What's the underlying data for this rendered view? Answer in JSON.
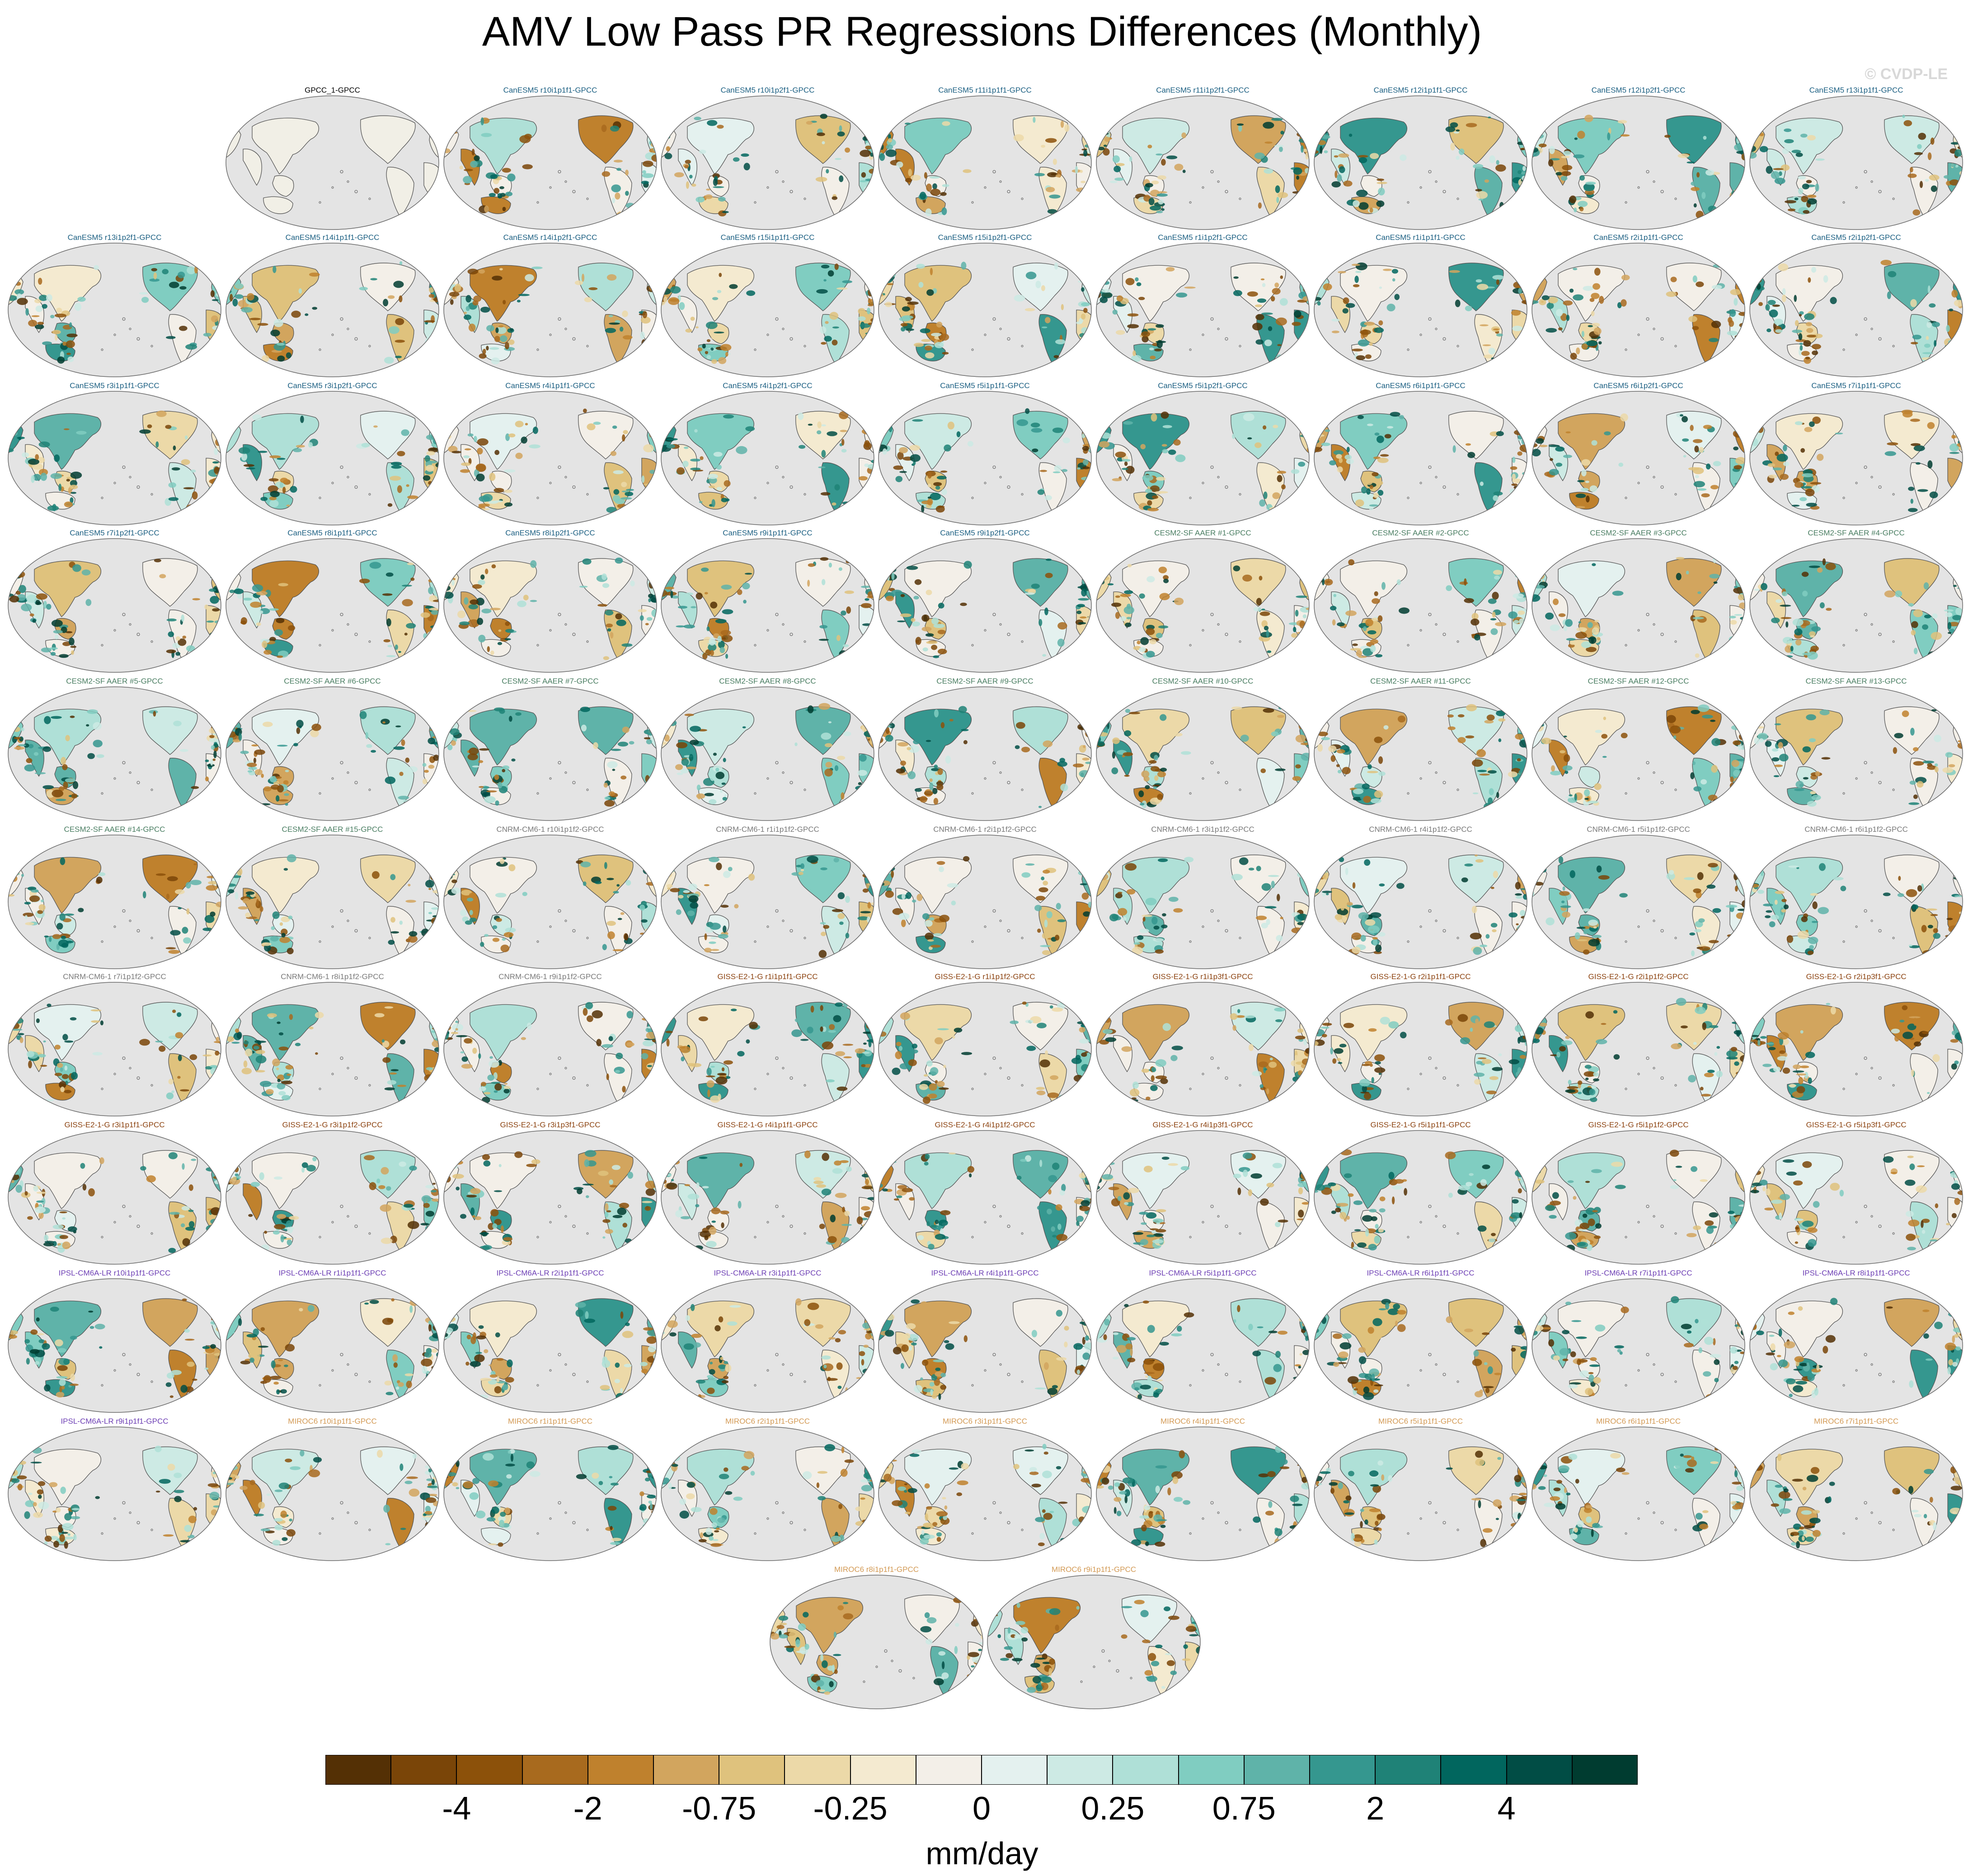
{
  "title": "AMV Low Pass PR Regressions Differences (Monthly)",
  "copyright": "© CVDP-LE",
  "colors": {
    "ocean": "#e4e4e4",
    "land_neutral": "#f1efe6",
    "coast": "#555555",
    "group_colors": {
      "obs": "#000000",
      "CanESM5": "#1b5f82",
      "CESM2-SF AAER": "#4a7e62",
      "CNRM-CM6-1": "#7a7a7a",
      "GISS-E2-1-G": "#8c4310",
      "IPSL-CM6A-LR": "#6e40b5",
      "MIROC6": "#d39a55"
    }
  },
  "panels": [
    {
      "label": "GPCC_1-GPCC",
      "group": "obs"
    },
    {
      "label": "CanESM5 r10i1p1f1-GPCC",
      "group": "CanESM5"
    },
    {
      "label": "CanESM5 r10i1p2f1-GPCC",
      "group": "CanESM5"
    },
    {
      "label": "CanESM5 r11i1p1f1-GPCC",
      "group": "CanESM5"
    },
    {
      "label": "CanESM5 r11i1p2f1-GPCC",
      "group": "CanESM5"
    },
    {
      "label": "CanESM5 r12i1p1f1-GPCC",
      "group": "CanESM5"
    },
    {
      "label": "CanESM5 r12i1p2f1-GPCC",
      "group": "CanESM5"
    },
    {
      "label": "CanESM5 r13i1p1f1-GPCC",
      "group": "CanESM5"
    },
    {
      "label": "CanESM5 r13i1p2f1-GPCC",
      "group": "CanESM5"
    },
    {
      "label": "CanESM5 r14i1p1f1-GPCC",
      "group": "CanESM5"
    },
    {
      "label": "CanESM5 r14i1p2f1-GPCC",
      "group": "CanESM5"
    },
    {
      "label": "CanESM5 r15i1p1f1-GPCC",
      "group": "CanESM5"
    },
    {
      "label": "CanESM5 r15i1p2f1-GPCC",
      "group": "CanESM5"
    },
    {
      "label": "CanESM5 r1i1p2f1-GPCC",
      "group": "CanESM5"
    },
    {
      "label": "CanESM5 r1i1p1f1-GPCC",
      "group": "CanESM5"
    },
    {
      "label": "CanESM5 r2i1p1f1-GPCC",
      "group": "CanESM5"
    },
    {
      "label": "CanESM5 r2i1p2f1-GPCC",
      "group": "CanESM5"
    },
    {
      "label": "CanESM5 r3i1p1f1-GPCC",
      "group": "CanESM5"
    },
    {
      "label": "CanESM5 r3i1p2f1-GPCC",
      "group": "CanESM5"
    },
    {
      "label": "CanESM5 r4i1p1f1-GPCC",
      "group": "CanESM5"
    },
    {
      "label": "CanESM5 r4i1p2f1-GPCC",
      "group": "CanESM5"
    },
    {
      "label": "CanESM5 r5i1p1f1-GPCC",
      "group": "CanESM5"
    },
    {
      "label": "CanESM5 r5i1p2f1-GPCC",
      "group": "CanESM5"
    },
    {
      "label": "CanESM5 r6i1p1f1-GPCC",
      "group": "CanESM5"
    },
    {
      "label": "CanESM5 r6i1p2f1-GPCC",
      "group": "CanESM5"
    },
    {
      "label": "CanESM5 r7i1p1f1-GPCC",
      "group": "CanESM5"
    },
    {
      "label": "CanESM5 r7i1p2f1-GPCC",
      "group": "CanESM5"
    },
    {
      "label": "CanESM5 r8i1p1f1-GPCC",
      "group": "CanESM5"
    },
    {
      "label": "CanESM5 r8i1p2f1-GPCC",
      "group": "CanESM5"
    },
    {
      "label": "CanESM5 r9i1p1f1-GPCC",
      "group": "CanESM5"
    },
    {
      "label": "CanESM5 r9i1p2f1-GPCC",
      "group": "CanESM5"
    },
    {
      "label": "CESM2-SF AAER #1-GPCC",
      "group": "CESM2-SF AAER"
    },
    {
      "label": "CESM2-SF AAER #2-GPCC",
      "group": "CESM2-SF AAER"
    },
    {
      "label": "CESM2-SF AAER #3-GPCC",
      "group": "CESM2-SF AAER"
    },
    {
      "label": "CESM2-SF AAER #4-GPCC",
      "group": "CESM2-SF AAER"
    },
    {
      "label": "CESM2-SF AAER #5-GPCC",
      "group": "CESM2-SF AAER"
    },
    {
      "label": "CESM2-SF AAER #6-GPCC",
      "group": "CESM2-SF AAER"
    },
    {
      "label": "CESM2-SF AAER #7-GPCC",
      "group": "CESM2-SF AAER"
    },
    {
      "label": "CESM2-SF AAER #8-GPCC",
      "group": "CESM2-SF AAER"
    },
    {
      "label": "CESM2-SF AAER #9-GPCC",
      "group": "CESM2-SF AAER"
    },
    {
      "label": "CESM2-SF AAER #10-GPCC",
      "group": "CESM2-SF AAER"
    },
    {
      "label": "CESM2-SF AAER #11-GPCC",
      "group": "CESM2-SF AAER"
    },
    {
      "label": "CESM2-SF AAER #12-GPCC",
      "group": "CESM2-SF AAER"
    },
    {
      "label": "CESM2-SF AAER #13-GPCC",
      "group": "CESM2-SF AAER"
    },
    {
      "label": "CESM2-SF AAER #14-GPCC",
      "group": "CESM2-SF AAER"
    },
    {
      "label": "CESM2-SF AAER #15-GPCC",
      "group": "CESM2-SF AAER"
    },
    {
      "label": "CNRM-CM6-1 r10i1p1f2-GPCC",
      "group": "CNRM-CM6-1"
    },
    {
      "label": "CNRM-CM6-1 r1i1p1f2-GPCC",
      "group": "CNRM-CM6-1"
    },
    {
      "label": "CNRM-CM6-1 r2i1p1f2-GPCC",
      "group": "CNRM-CM6-1"
    },
    {
      "label": "CNRM-CM6-1 r3i1p1f2-GPCC",
      "group": "CNRM-CM6-1"
    },
    {
      "label": "CNRM-CM6-1 r4i1p1f2-GPCC",
      "group": "CNRM-CM6-1"
    },
    {
      "label": "CNRM-CM6-1 r5i1p1f2-GPCC",
      "group": "CNRM-CM6-1"
    },
    {
      "label": "CNRM-CM6-1 r6i1p1f2-GPCC",
      "group": "CNRM-CM6-1"
    },
    {
      "label": "CNRM-CM6-1 r7i1p1f2-GPCC",
      "group": "CNRM-CM6-1"
    },
    {
      "label": "CNRM-CM6-1 r8i1p1f2-GPCC",
      "group": "CNRM-CM6-1"
    },
    {
      "label": "CNRM-CM6-1 r9i1p1f2-GPCC",
      "group": "CNRM-CM6-1"
    },
    {
      "label": "GISS-E2-1-G r1i1p1f1-GPCC",
      "group": "GISS-E2-1-G"
    },
    {
      "label": "GISS-E2-1-G r1i1p1f2-GPCC",
      "group": "GISS-E2-1-G"
    },
    {
      "label": "GISS-E2-1-G r1i1p3f1-GPCC",
      "group": "GISS-E2-1-G"
    },
    {
      "label": "GISS-E2-1-G r2i1p1f1-GPCC",
      "group": "GISS-E2-1-G"
    },
    {
      "label": "GISS-E2-1-G r2i1p1f2-GPCC",
      "group": "GISS-E2-1-G"
    },
    {
      "label": "GISS-E2-1-G r2i1p3f1-GPCC",
      "group": "GISS-E2-1-G"
    },
    {
      "label": "GISS-E2-1-G r3i1p1f1-GPCC",
      "group": "GISS-E2-1-G"
    },
    {
      "label": "GISS-E2-1-G r3i1p1f2-GPCC",
      "group": "GISS-E2-1-G"
    },
    {
      "label": "GISS-E2-1-G r3i1p3f1-GPCC",
      "group": "GISS-E2-1-G"
    },
    {
      "label": "GISS-E2-1-G r4i1p1f1-GPCC",
      "group": "GISS-E2-1-G"
    },
    {
      "label": "GISS-E2-1-G r4i1p1f2-GPCC",
      "group": "GISS-E2-1-G"
    },
    {
      "label": "GISS-E2-1-G r4i1p3f1-GPCC",
      "group": "GISS-E2-1-G"
    },
    {
      "label": "GISS-E2-1-G r5i1p1f1-GPCC",
      "group": "GISS-E2-1-G"
    },
    {
      "label": "GISS-E2-1-G r5i1p1f2-GPCC",
      "group": "GISS-E2-1-G"
    },
    {
      "label": "GISS-E2-1-G r5i1p3f1-GPCC",
      "group": "GISS-E2-1-G"
    },
    {
      "label": "IPSL-CM6A-LR r10i1p1f1-GPCC",
      "group": "IPSL-CM6A-LR"
    },
    {
      "label": "IPSL-CM6A-LR r1i1p1f1-GPCC",
      "group": "IPSL-CM6A-LR"
    },
    {
      "label": "IPSL-CM6A-LR r2i1p1f1-GPCC",
      "group": "IPSL-CM6A-LR"
    },
    {
      "label": "IPSL-CM6A-LR r3i1p1f1-GPCC",
      "group": "IPSL-CM6A-LR"
    },
    {
      "label": "IPSL-CM6A-LR r4i1p1f1-GPCC",
      "group": "IPSL-CM6A-LR"
    },
    {
      "label": "IPSL-CM6A-LR r5i1p1f1-GPCC",
      "group": "IPSL-CM6A-LR"
    },
    {
      "label": "IPSL-CM6A-LR r6i1p1f1-GPCC",
      "group": "IPSL-CM6A-LR"
    },
    {
      "label": "IPSL-CM6A-LR r7i1p1f1-GPCC",
      "group": "IPSL-CM6A-LR"
    },
    {
      "label": "IPSL-CM6A-LR r8i1p1f1-GPCC",
      "group": "IPSL-CM6A-LR"
    },
    {
      "label": "IPSL-CM6A-LR r9i1p1f1-GPCC",
      "group": "IPSL-CM6A-LR"
    },
    {
      "label": "MIROC6 r10i1p1f1-GPCC",
      "group": "MIROC6"
    },
    {
      "label": "MIROC6 r1i1p1f1-GPCC",
      "group": "MIROC6"
    },
    {
      "label": "MIROC6 r2i1p1f1-GPCC",
      "group": "MIROC6"
    },
    {
      "label": "MIROC6 r3i1p1f1-GPCC",
      "group": "MIROC6"
    },
    {
      "label": "MIROC6 r4i1p1f1-GPCC",
      "group": "MIROC6"
    },
    {
      "label": "MIROC6 r5i1p1f1-GPCC",
      "group": "MIROC6"
    },
    {
      "label": "MIROC6 r6i1p1f1-GPCC",
      "group": "MIROC6"
    },
    {
      "label": "MIROC6 r7i1p1f1-GPCC",
      "group": "MIROC6"
    },
    {
      "label": "MIROC6 r8i1p1f1-GPCC",
      "group": "MIROC6"
    },
    {
      "label": "MIROC6 r9i1p1f1-GPCC",
      "group": "MIROC6"
    }
  ],
  "colorbar": {
    "units": "mm/day",
    "colors": [
      "#543005",
      "#7a4508",
      "#8c510a",
      "#a86a1e",
      "#bf812d",
      "#d2a55e",
      "#dfc27d",
      "#ecd9a8",
      "#f4ead0",
      "#f3efe8",
      "#e4f1ef",
      "#cdeae4",
      "#afe0d7",
      "#80cdc1",
      "#5fb3a9",
      "#35978f",
      "#1f8277",
      "#01665e",
      "#014d45",
      "#003c30"
    ],
    "tick_labels": [
      "-4",
      "-2",
      "-0.75",
      "-0.25",
      "0",
      "0.25",
      "0.75",
      "2",
      "4"
    ]
  }
}
